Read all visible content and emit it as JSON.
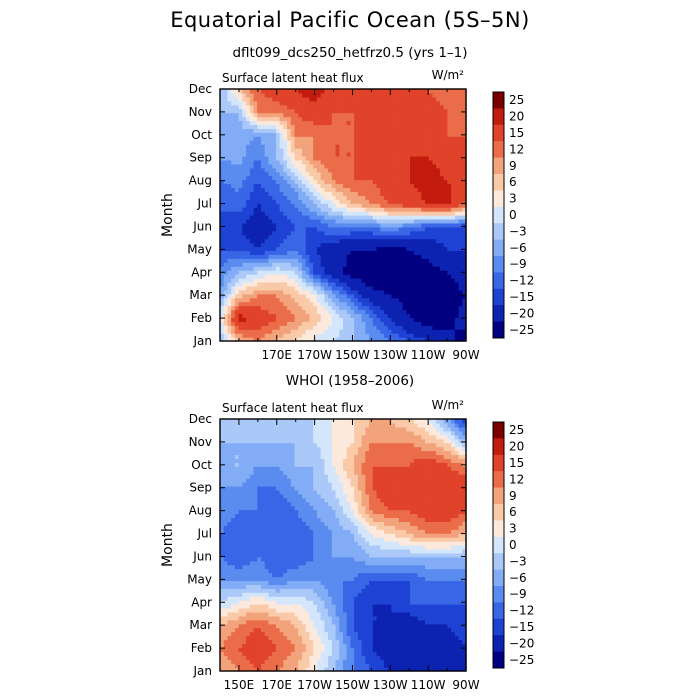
{
  "page": {
    "title": "Equatorial Pacific Ocean (5S–5N)",
    "subtitle": "dflt099_dcs250_hetfrz0.5 (yrs 1–1)",
    "second_subtitle": "WHOI (1958–2006)"
  },
  "chart_data": [
    {
      "type": "heatmap",
      "panel": "model",
      "title": "Surface latent heat flux",
      "units": "W/m²",
      "xlabel": "",
      "ylabel": "Month",
      "x_tick_labels": [
        "170E",
        "170W",
        "150W",
        "130W",
        "110W",
        "90W"
      ],
      "y_tick_labels": [
        "Jan",
        "Feb",
        "Mar",
        "Apr",
        "May",
        "Jun",
        "Jul",
        "Aug",
        "Sep",
        "Oct",
        "Nov",
        "Dec"
      ],
      "xlim_deg_east": [
        140,
        270
      ],
      "colorbar_labels": [
        "25",
        "20",
        "15",
        "12",
        "9",
        "6",
        "3",
        "0",
        "−3",
        "−6",
        "−9",
        "−12",
        "−15",
        "−20",
        "−25"
      ],
      "x": [
        140,
        150,
        160,
        170,
        180,
        190,
        200,
        210,
        220,
        230,
        240,
        250,
        260,
        270
      ],
      "values": [
        [
          -3,
          8,
          12,
          8,
          5,
          2,
          0,
          -3,
          -6,
          -9,
          -12,
          -15,
          -18,
          -22
        ],
        [
          2,
          22,
          18,
          15,
          12,
          8,
          3,
          -2,
          -9,
          -15,
          -20,
          -23,
          -22,
          -18
        ],
        [
          -6,
          8,
          12,
          12,
          8,
          4,
          -5,
          -12,
          -18,
          -20,
          -22,
          -24,
          -22,
          -20
        ],
        [
          -8,
          -3,
          0,
          3,
          0,
          -12,
          -18,
          -22,
          -24,
          -25,
          -24,
          -22,
          -20,
          -18
        ],
        [
          -12,
          -12,
          -15,
          -12,
          -9,
          -15,
          -18,
          -20,
          -20,
          -22,
          -20,
          -18,
          -15,
          -15
        ],
        [
          -12,
          -15,
          -18,
          -15,
          -12,
          -12,
          -9,
          -9,
          -9,
          -6,
          -9,
          -12,
          -12,
          -15
        ],
        [
          -12,
          -10,
          -15,
          -12,
          -9,
          -3,
          3,
          9,
          12,
          15,
          18,
          20,
          22,
          15
        ],
        [
          -9,
          -8,
          -12,
          -9,
          -3,
          6,
          12,
          15,
          15,
          18,
          20,
          22,
          20,
          18
        ],
        [
          -6,
          -5,
          -9,
          -3,
          6,
          12,
          15,
          15,
          18,
          15,
          20,
          20,
          18,
          15
        ],
        [
          -6,
          -5,
          -6,
          -3,
          12,
          12,
          15,
          15,
          20,
          15,
          15,
          18,
          15,
          15
        ],
        [
          -3,
          -3,
          12,
          12,
          15,
          18,
          15,
          15,
          18,
          15,
          20,
          18,
          15,
          15
        ],
        [
          -3,
          8,
          15,
          18,
          20,
          23,
          18,
          18,
          20,
          18,
          15,
          15,
          12,
          12
        ]
      ]
    },
    {
      "type": "heatmap",
      "panel": "WHOI",
      "title": "Surface latent heat flux",
      "units": "W/m²",
      "xlabel": "",
      "ylabel": "Month",
      "x_tick_labels": [
        "150E",
        "170E",
        "170W",
        "150W",
        "130W",
        "110W",
        "90W"
      ],
      "y_tick_labels": [
        "Jan",
        "Feb",
        "Mar",
        "Apr",
        "May",
        "Jun",
        "Jul",
        "Aug",
        "Sep",
        "Oct",
        "Nov",
        "Dec"
      ],
      "xlim_deg_east": [
        140,
        270
      ],
      "colorbar_labels": [
        "25",
        "20",
        "15",
        "12",
        "9",
        "6",
        "3",
        "0",
        "−3",
        "−6",
        "−9",
        "−12",
        "−15",
        "−20",
        "−25"
      ],
      "x": [
        140,
        150,
        160,
        170,
        180,
        190,
        200,
        210,
        220,
        230,
        240,
        250,
        260,
        270
      ],
      "values": [
        [
          9,
          12,
          15,
          12,
          9,
          3,
          -3,
          -9,
          -12,
          -15,
          -18,
          -18,
          -20,
          -20
        ],
        [
          12,
          15,
          18,
          15,
          12,
          6,
          0,
          -9,
          -15,
          -18,
          -20,
          -18,
          -20,
          -15
        ],
        [
          9,
          12,
          15,
          12,
          9,
          3,
          -3,
          -12,
          -15,
          -15,
          -18,
          -15,
          -15,
          -12
        ],
        [
          0,
          3,
          6,
          3,
          3,
          0,
          -6,
          -12,
          -15,
          -15,
          -12,
          -12,
          -12,
          -12
        ],
        [
          -6,
          -6,
          -6,
          -9,
          -6,
          -6,
          -9,
          -9,
          -12,
          -12,
          -12,
          -9,
          -9,
          -9
        ],
        [
          -9,
          -12,
          -9,
          -12,
          -12,
          -9,
          -6,
          -6,
          -3,
          -3,
          -3,
          -3,
          -3,
          -3
        ],
        [
          -9,
          -12,
          -12,
          -9,
          -12,
          -9,
          -6,
          -3,
          3,
          6,
          9,
          12,
          12,
          9
        ],
        [
          -6,
          -9,
          -9,
          -12,
          -9,
          -6,
          -3,
          3,
          12,
          15,
          15,
          18,
          18,
          15
        ],
        [
          -6,
          -6,
          -9,
          -9,
          -6,
          -3,
          0,
          6,
          15,
          18,
          15,
          18,
          20,
          18
        ],
        [
          -3,
          -3,
          -6,
          -6,
          -3,
          -3,
          3,
          9,
          15,
          15,
          15,
          18,
          15,
          12
        ],
        [
          -3,
          -3,
          -3,
          -3,
          -3,
          0,
          3,
          6,
          12,
          12,
          12,
          9,
          6,
          -3
        ],
        [
          0,
          -3,
          0,
          -3,
          0,
          0,
          3,
          6,
          9,
          9,
          6,
          3,
          -6,
          -15
        ]
      ]
    }
  ],
  "colors": {
    "levels": [
      "#000080",
      "#0d22b0",
      "#1e43d4",
      "#3866e6",
      "#5a8cf0",
      "#82acf5",
      "#aac9f8",
      "#d4e6fb",
      "#fde9dc",
      "#f9c9a8",
      "#f3a37c",
      "#ea6c48",
      "#e1422a",
      "#c41b0f",
      "#7a0000"
    ]
  }
}
